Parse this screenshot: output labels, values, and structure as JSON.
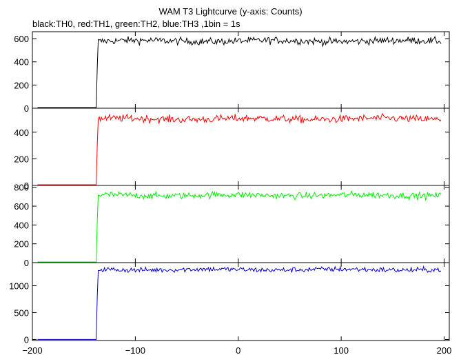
{
  "title": "WAM T3 Lightcurve (y-axis: Counts)",
  "subtitle": "black:TH0, red:TH1, green:TH2, blue:TH3 ,1bin = 1s",
  "chart_data": {
    "type": "line",
    "x_axis": {
      "range": [
        -200,
        205
      ],
      "ticks": [
        -200,
        -100,
        0,
        100,
        200
      ],
      "tick_labels": [
        "−200",
        "−100",
        "0",
        "100",
        "200"
      ]
    },
    "onset_time": -137,
    "series": [
      {
        "color": "#000000",
        "y_range": [
          0,
          660
        ],
        "y_ticks": [
          0,
          200,
          400,
          600
        ],
        "y_tick_labels": [
          "0",
          "200",
          "400",
          "600"
        ],
        "pre_onset_level": 0,
        "post_onset_level": 580,
        "noise": 22
      },
      {
        "color": "#ff0000",
        "y_range": [
          0,
          580
        ],
        "y_ticks": [
          0,
          200,
          400
        ],
        "y_tick_labels": [
          "0",
          "200",
          "400"
        ],
        "pre_onset_level": 5,
        "post_onset_level": 500,
        "noise": 20
      },
      {
        "color": "#00ee00",
        "y_range": [
          0,
          820
        ],
        "y_ticks": [
          0,
          200,
          400,
          600,
          800
        ],
        "y_tick_labels": [
          "0",
          "200",
          "400",
          "600",
          "800"
        ],
        "pre_onset_level": 5,
        "post_onset_level": 715,
        "noise": 25
      },
      {
        "color": "#0000cc",
        "y_range": [
          -20,
          1430
        ],
        "y_ticks": [
          0,
          500,
          1000
        ],
        "y_tick_labels": [
          "0",
          "500",
          "1000"
        ],
        "pre_onset_level": 0,
        "post_onset_level": 1300,
        "noise": 35
      }
    ]
  }
}
